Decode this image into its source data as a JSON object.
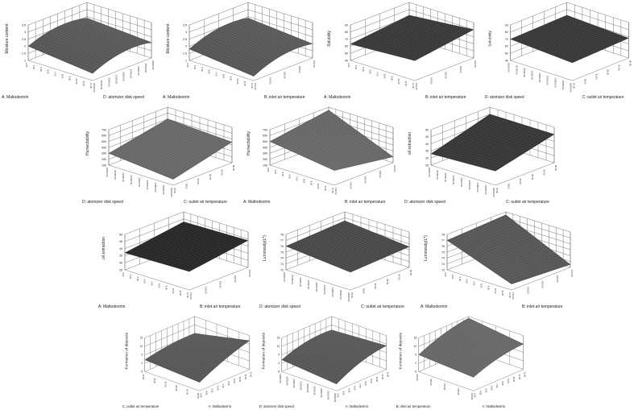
{
  "axes": {
    "A": {
      "label": "A: Maltodextrin",
      "ticks": [
        "3.00",
        "4.00",
        "5.00",
        "6.00",
        "7.00",
        "8.00",
        "9.00",
        "10.00",
        "11.00",
        "12.00"
      ]
    },
    "B": {
      "label": "B: inlet air temperature",
      "ticks": [
        "140.00",
        "145.00",
        "150.00",
        "155.00",
        "160.00"
      ]
    },
    "C": {
      "label": "C: outlet air temperature",
      "ticks": [
        "75.00",
        "78.00",
        "81.00",
        "84.00",
        "87.00",
        "90.00"
      ]
    },
    "D": {
      "label": "D: atomizer disk speed",
      "ticks": [
        "20000.00",
        "20750.00",
        "21500.00",
        "22250.00",
        "23000.00",
        "23750.00",
        "24500.00",
        "25250.00",
        "26000.00"
      ]
    }
  },
  "chart_data": [
    {
      "type": "surface3d",
      "zlabel": "Moisture content",
      "x": "A",
      "y": "D",
      "zticks": [
        "1",
        "1.5",
        "2",
        "2.5",
        "3",
        "3.5"
      ],
      "zlim": [
        1,
        3.5
      ],
      "corners": {
        "xmin_ymin": 2.0,
        "xmax_ymin": 1.5,
        "xmax_ymax": 2.1,
        "xmin_ymax": 2.4
      },
      "curvature": 0.3,
      "surface_color": "#555555"
    },
    {
      "type": "surface3d",
      "zlabel": "Moisture content",
      "x": "A",
      "y": "B",
      "zticks": [
        "1",
        "1.5",
        "2",
        "2.5",
        "3",
        "3.5"
      ],
      "zlim": [
        1,
        3.5
      ],
      "corners": {
        "xmin_ymin": 1.8,
        "xmax_ymin": 1.3,
        "xmax_ymax": 2.0,
        "xmin_ymax": 2.4
      },
      "curvature": 0.3,
      "surface_color": "#555555"
    },
    {
      "type": "surface3d",
      "zlabel": "Solubility",
      "x": "A",
      "y": "B",
      "zticks": [
        "40",
        "50",
        "60",
        "70",
        "80",
        "90"
      ],
      "zlim": [
        40,
        90
      ],
      "corners": {
        "xmin_ymin": 63,
        "xmax_ymin": 68,
        "xmax_ymax": 80,
        "xmin_ymax": 72
      },
      "curvature": 0,
      "surface_color": "#333333"
    },
    {
      "type": "surface3d",
      "zlabel": "Solubility",
      "x": "D",
      "y": "C",
      "zticks": [
        "40",
        "50",
        "60",
        "70",
        "80",
        "90"
      ],
      "zlim": [
        40,
        90
      ],
      "corners": {
        "xmin_ymin": 70,
        "xmax_ymin": 65,
        "xmax_ymax": 68,
        "xmin_ymax": 72
      },
      "curvature": 0,
      "surface_color": "#333333"
    },
    {
      "type": "surface3d",
      "zlabel": "Humectability",
      "x": "D",
      "y": "C",
      "zticks": [
        "100",
        "200",
        "300",
        "400",
        "500",
        "600",
        "700"
      ],
      "zlim": [
        100,
        700
      ],
      "corners": {
        "xmin_ymin": 300,
        "xmax_ymin": 200,
        "xmax_ymax": 450,
        "xmin_ymax": 500
      },
      "curvature": 0,
      "surface_color": "#666666"
    },
    {
      "type": "surface3d",
      "zlabel": "Humectability",
      "x": "A",
      "y": "B",
      "zticks": [
        "100",
        "200",
        "300",
        "400",
        "500",
        "600",
        "700"
      ],
      "zlim": [
        100,
        700
      ],
      "corners": {
        "xmin_ymin": 500,
        "xmax_ymin": 350,
        "xmax_ymax": 200,
        "xmin_ymax": 650
      },
      "curvature": 0,
      "surface_color": "#666666"
    },
    {
      "type": "surface3d",
      "zlabel": "oil extraction",
      "x": "D",
      "y": "C",
      "zticks": [
        "25",
        "30",
        "35",
        "40",
        "45",
        "50"
      ],
      "zlim": [
        25,
        50
      ],
      "corners": {
        "xmin_ymin": 33,
        "xmax_ymin": 35,
        "xmax_ymax": 45,
        "xmin_ymax": 45
      },
      "curvature": 0,
      "surface_color": "#333333"
    },
    {
      "type": "surface3d",
      "zlabel": "oil extraction",
      "x": "A",
      "y": "B",
      "zticks": [
        "25",
        "30",
        "35",
        "40",
        "45",
        "50"
      ],
      "zlim": [
        25,
        50
      ],
      "corners": {
        "xmin_ymin": 37,
        "xmax_ymin": 38,
        "xmax_ymax": 44,
        "xmin_ymax": 43
      },
      "curvature": 0,
      "surface_color": "#222222"
    },
    {
      "type": "surface3d",
      "zlabel": "Luminosity(L*)",
      "x": "D",
      "y": "C",
      "zticks": [
        "72",
        "73",
        "74",
        "75",
        "76",
        "77",
        "78"
      ],
      "zlim": [
        72,
        78
      ],
      "corners": {
        "xmin_ymin": 76,
        "xmax_ymin": 75,
        "xmax_ymax": 75.5,
        "xmin_ymax": 76.5
      },
      "curvature": 0,
      "surface_color": "#444444"
    },
    {
      "type": "surface3d",
      "zlabel": "Luminosity(L*)",
      "x": "A",
      "y": "B",
      "zticks": [
        "72",
        "73",
        "74",
        "75",
        "76",
        "77",
        "78"
      ],
      "zlim": [
        72,
        78
      ],
      "corners": {
        "xmin_ymin": 77,
        "xmax_ymin": 73,
        "xmax_ymax": 72.5,
        "xmin_ymax": 77.5
      },
      "curvature": 0,
      "surface_color": "#555555"
    },
    {
      "type": "surface3d",
      "zlabel": "Formation of deposits",
      "x": "C",
      "y": "A",
      "zticks": [
        "-5",
        "0",
        "5",
        "10",
        "15"
      ],
      "zlim": [
        -5,
        15
      ],
      "corners": {
        "xmin_ymin": 2,
        "xmax_ymin": 0,
        "xmax_ymax": 12,
        "xmin_ymax": 5
      },
      "curvature": 0.1,
      "surface_color": "#555555"
    },
    {
      "type": "surface3d",
      "zlabel": "Formation of deposits",
      "x": "D",
      "y": "A",
      "zticks": [
        "-5",
        "0",
        "5",
        "10",
        "15"
      ],
      "zlim": [
        -5,
        15
      ],
      "corners": {
        "xmin_ymin": 2,
        "xmax_ymin": -1,
        "xmax_ymax": 9,
        "xmin_ymax": 7
      },
      "curvature": 0.2,
      "surface_color": "#555555"
    },
    {
      "type": "surface3d",
      "zlabel": "Formation of deposits",
      "x": "B",
      "y": "A",
      "zticks": [
        "-5",
        "0",
        "5",
        "10",
        "15"
      ],
      "zlim": [
        -5,
        15
      ],
      "corners": {
        "xmin_ymin": 5,
        "xmax_ymin": 3,
        "xmax_ymax": 10,
        "xmin_ymax": 14
      },
      "curvature": 0.15,
      "surface_color": "#666666"
    }
  ]
}
